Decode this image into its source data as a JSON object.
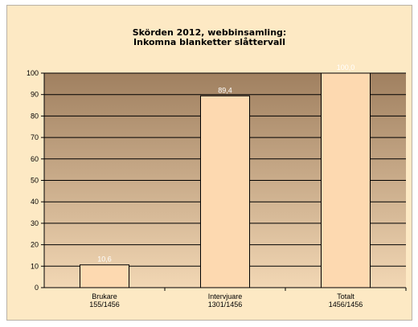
{
  "chart_data": {
    "type": "bar",
    "title_lines": [
      "Skörden 2012, webbinsamling:",
      "Inkomna blanketter slåttervall"
    ],
    "categories": [
      {
        "line1": "Brukare",
        "line2": "155/1456"
      },
      {
        "line1": "Intervjuare",
        "line2": "1301/1456"
      },
      {
        "line1": "Totalt",
        "line2": "1456/1456"
      }
    ],
    "values": [
      10.6,
      89.4,
      100.0
    ],
    "data_labels": [
      "10,6",
      "89,4",
      "100,0"
    ],
    "ylim": [
      0,
      100
    ],
    "yticks": [
      "0",
      "10",
      "20",
      "30",
      "40",
      "50",
      "60",
      "70",
      "80",
      "90",
      "100"
    ],
    "grid": true,
    "legend": "none",
    "colors": {
      "plot_background_top": "#a08060",
      "plot_background_bottom": "#f2d7b4",
      "bar_fill": "#fdd9b0",
      "bar_stroke": "#000000",
      "gridline": "#000000",
      "data_label": "#ffffff",
      "chart_background": "#fde9c4"
    }
  }
}
